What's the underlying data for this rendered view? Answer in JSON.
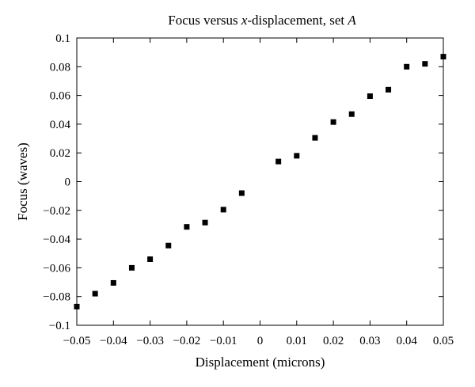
{
  "chart_data": {
    "type": "scatter",
    "title_parts": [
      {
        "text": "Focus versus ",
        "italic": false
      },
      {
        "text": "x",
        "italic": true
      },
      {
        "text": "-displacement, set ",
        "italic": false
      },
      {
        "text": "A",
        "italic": true
      }
    ],
    "xlabel": "Displacement (microns)",
    "ylabel": "Focus (waves)",
    "xlim": [
      -0.05,
      0.05
    ],
    "ylim": [
      -0.1,
      0.1
    ],
    "xticks": [
      -0.05,
      -0.04,
      -0.03,
      -0.02,
      -0.01,
      0,
      0.01,
      0.02,
      0.03,
      0.04,
      0.05
    ],
    "xtick_labels": [
      "−0.05",
      "−0.04",
      "−0.03",
      "−0.02",
      "−0.01",
      "0",
      "0.01",
      "0.02",
      "0.03",
      "0.04",
      "0.05"
    ],
    "yticks": [
      0.1,
      0.08,
      0.06,
      0.04,
      0.02,
      0,
      -0.02,
      -0.04,
      -0.06,
      -0.08,
      -0.1
    ],
    "ytick_labels": [
      "0.1",
      "0.08",
      "0.06",
      "0.04",
      "0.02",
      "0",
      "−0.02",
      "−0.04",
      "−0.06",
      "−0.08",
      "−0.1"
    ],
    "grid": false,
    "marker": "square",
    "marker_color": "#000000",
    "series": [
      {
        "points": [
          {
            "x": -0.05,
            "y": -0.087
          },
          {
            "x": -0.045,
            "y": -0.078
          },
          {
            "x": -0.04,
            "y": -0.0705
          },
          {
            "x": -0.035,
            "y": -0.06
          },
          {
            "x": -0.03,
            "y": -0.054
          },
          {
            "x": -0.025,
            "y": -0.0445
          },
          {
            "x": -0.02,
            "y": -0.0315
          },
          {
            "x": -0.015,
            "y": -0.0285
          },
          {
            "x": -0.01,
            "y": -0.0195
          },
          {
            "x": -0.005,
            "y": -0.008
          },
          {
            "x": 0.005,
            "y": 0.014
          },
          {
            "x": 0.01,
            "y": 0.018
          },
          {
            "x": 0.015,
            "y": 0.0305
          },
          {
            "x": 0.02,
            "y": 0.0415
          },
          {
            "x": 0.025,
            "y": 0.047
          },
          {
            "x": 0.03,
            "y": 0.0595
          },
          {
            "x": 0.035,
            "y": 0.064
          },
          {
            "x": 0.04,
            "y": 0.08
          },
          {
            "x": 0.045,
            "y": 0.082
          },
          {
            "x": 0.05,
            "y": 0.087
          }
        ]
      }
    ]
  }
}
